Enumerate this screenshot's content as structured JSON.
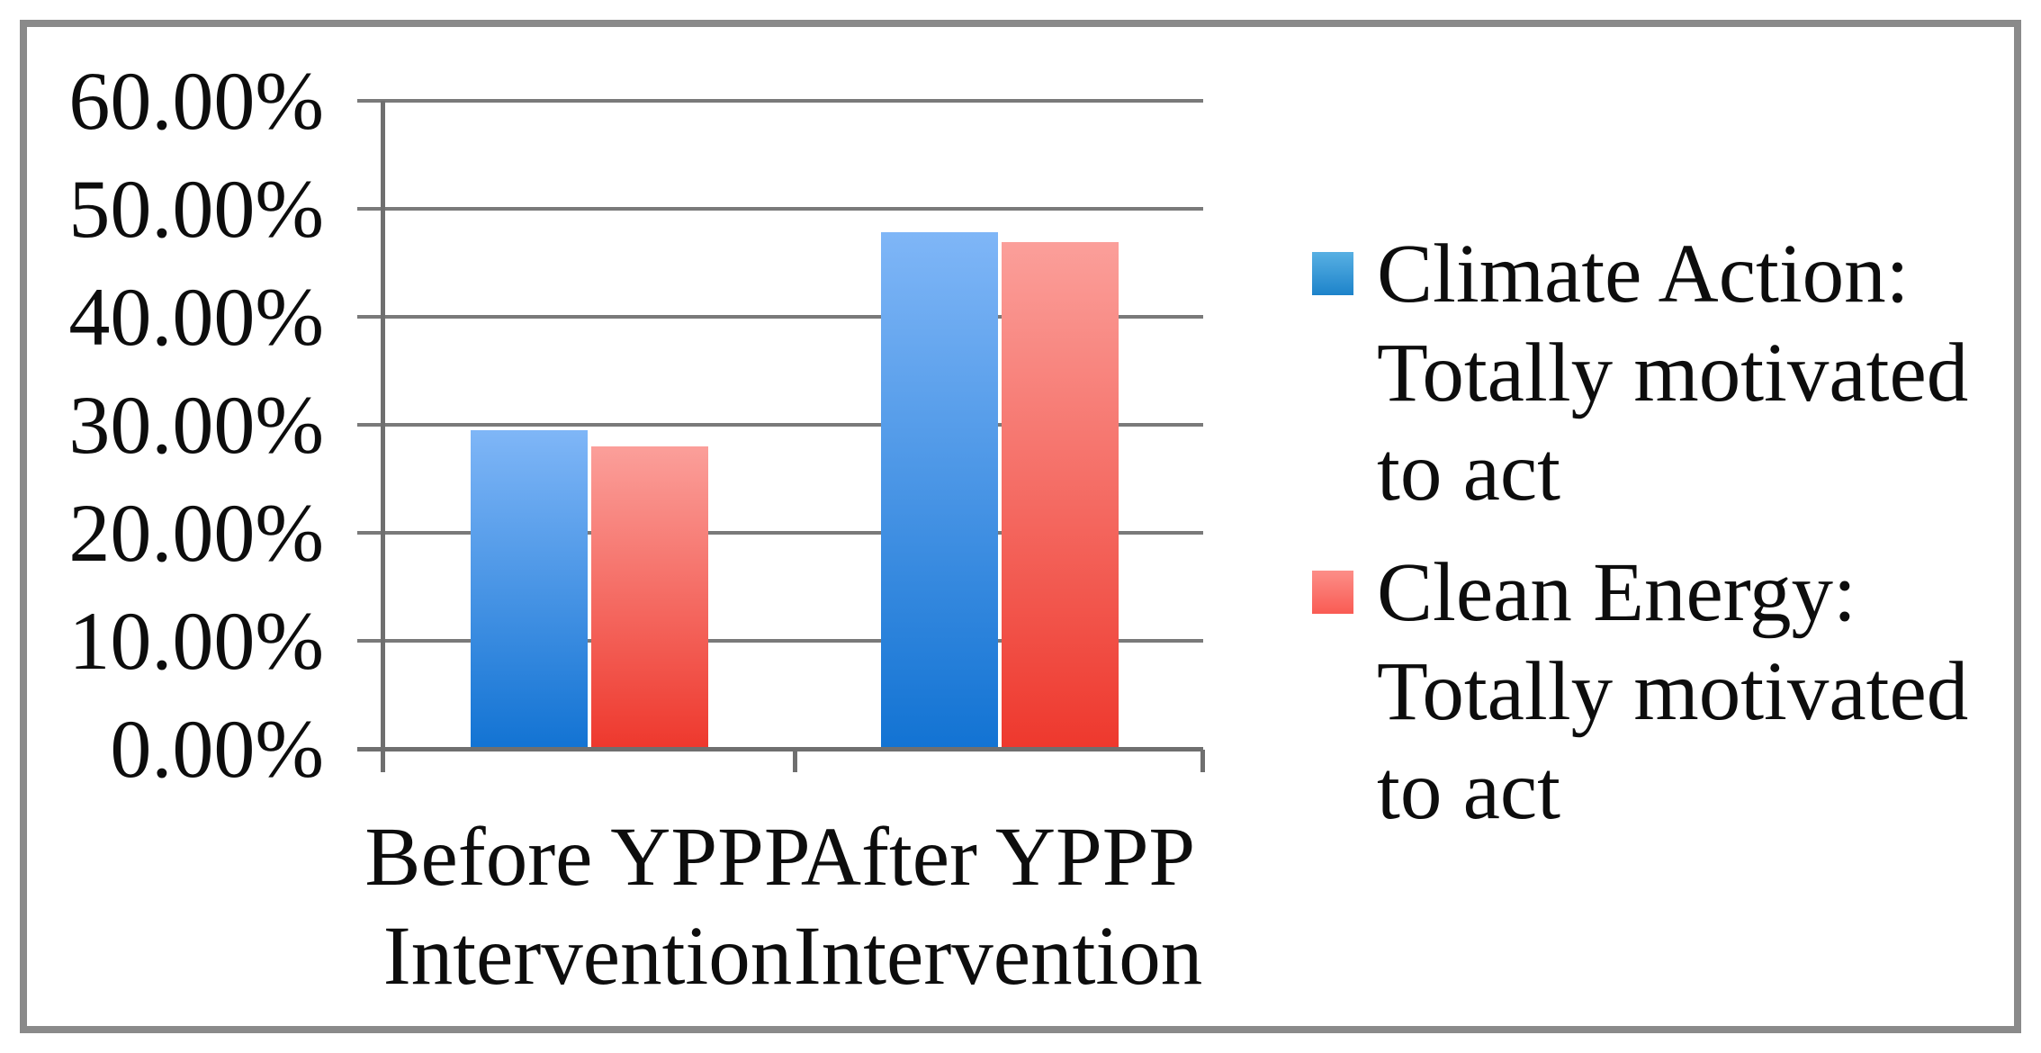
{
  "chart_data": {
    "type": "bar",
    "title": "",
    "xlabel": "",
    "ylabel": "",
    "categories": [
      "Before YPPP Intervention",
      "After YPPP Intervention"
    ],
    "category_label_lines": [
      [
        "Before YPPP",
        "Intervention"
      ],
      [
        "After YPPP",
        "Intervention"
      ]
    ],
    "series": [
      {
        "name": "Climate Action: Totally motivated to act",
        "legend_lines": [
          "Climate Action:",
          "Totally motivated",
          "to act"
        ],
        "values": [
          29.5,
          47.8
        ],
        "color_top": "#7fb6f7",
        "color_bottom": "#1273d3",
        "legend_color_top": "#58b0e3",
        "legend_color_bottom": "#1d83ca"
      },
      {
        "name": "Clean Energy: Totally motivated to act",
        "legend_lines": [
          "Clean Energy:",
          "Totally motivated",
          "to act"
        ],
        "values": [
          28.0,
          46.9
        ],
        "color_top": "#fb9f9a",
        "color_bottom": "#ee382d",
        "legend_color_top": "#fc8e88",
        "legend_color_bottom": "#f95b53"
      }
    ],
    "y_ticks": [
      {
        "value": 0,
        "label": "0.00%"
      },
      {
        "value": 10,
        "label": "10.00%"
      },
      {
        "value": 20,
        "label": "20.00%"
      },
      {
        "value": 30,
        "label": "30.00%"
      },
      {
        "value": 40,
        "label": "40.00%"
      },
      {
        "value": 50,
        "label": "50.00%"
      },
      {
        "value": 60,
        "label": "60.00%"
      }
    ],
    "ylim": [
      0,
      60
    ],
    "grid": true,
    "legend_position": "right",
    "colors": {
      "frame_border": "#8a8a8a",
      "gridline": "#7a7a7a",
      "axis": "#6f6f6f",
      "text": "#0d0d0d",
      "background": "#ffffff"
    }
  }
}
